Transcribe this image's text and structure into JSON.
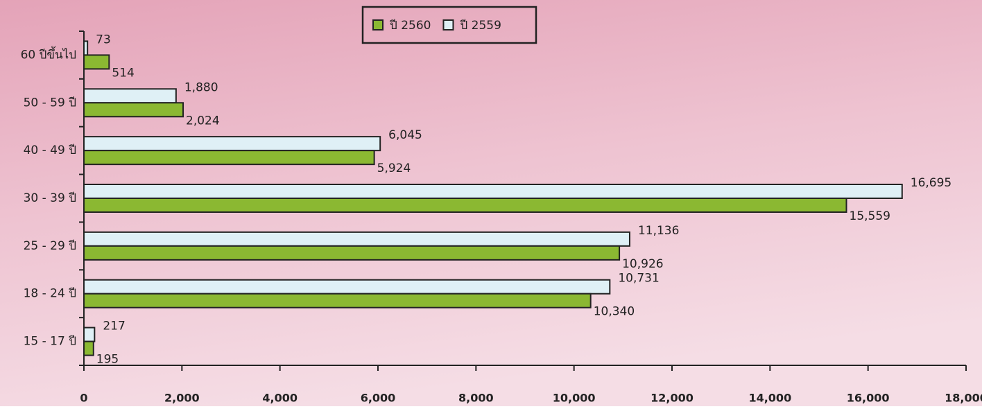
{
  "chart_data": {
    "type": "hbar",
    "categories": [
      "60 ปีขึ้นไป",
      "50 - 59 ปี",
      "40 - 49 ปี",
      "30 - 39 ปี",
      "25 - 29 ปี",
      "18 - 24 ปี",
      "15 - 17 ปี"
    ],
    "series": [
      {
        "name": "ปี 2560",
        "color": "#8bb832",
        "values": [
          514,
          2024,
          5924,
          15559,
          10926,
          10340,
          195
        ],
        "value_labels": [
          "514",
          "2,024",
          "5,924",
          "15,559",
          "10,926",
          "10,340",
          "195"
        ]
      },
      {
        "name": "ปี 2559",
        "color": "#dff0f6",
        "values": [
          73,
          1880,
          6045,
          16695,
          11136,
          10731,
          217
        ],
        "value_labels": [
          "73",
          "1,880",
          "6,045",
          "16,695",
          "11,136",
          "10,731",
          "217"
        ]
      }
    ],
    "xlim": [
      0,
      18000
    ],
    "xticks": [
      0,
      {
        "value": 2000,
        "label": "2,000"
      },
      {
        "value": 4000,
        "label": "4,000"
      },
      {
        "value": 6000,
        "label": "6,000"
      },
      {
        "value": 8000,
        "label": "8,000"
      },
      {
        "value": 10000,
        "label": "10,000"
      },
      {
        "value": 12000,
        "label": "12,000"
      },
      {
        "value": 14000,
        "label": "14,000"
      },
      {
        "value": 16000,
        "label": "16,000"
      },
      {
        "value": 18000,
        "label": "18,000"
      }
    ],
    "legend": "top"
  }
}
